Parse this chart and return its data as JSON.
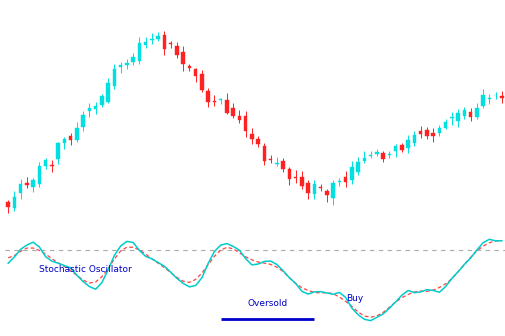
{
  "bg_color": "#ffffff",
  "candle_up_color": "#00e0e0",
  "candle_down_color": "#ff2222",
  "stoch_k_color": "#00cccc",
  "stoch_d_color": "#ff4444",
  "overbought_level": 0.8,
  "oversold_label": "Oversold",
  "buy_label": "Buy",
  "stoch_label": "Stochastic Oscillator",
  "annotation_color": "#0000cc",
  "dotted_line_color": "#aaaaaa",
  "candle_up_body_color": "#00e0e0",
  "candle_down_body_color": "#ff2222",
  "candle_up_wick_color": "#00e0e0",
  "candle_down_wick_color": "#ff2222"
}
